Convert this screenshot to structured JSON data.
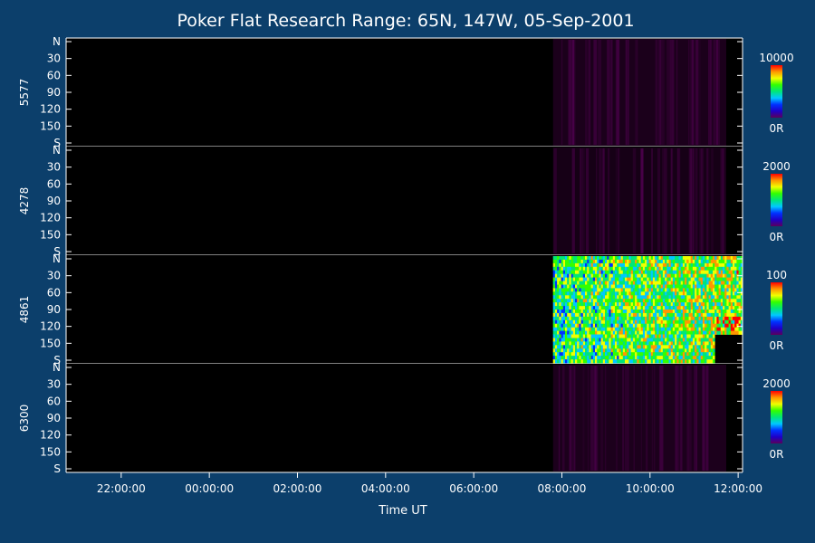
{
  "chart_data": {
    "type": "heatmap",
    "title": "Poker Flat Research Range: 65N, 147W, 05-Sep-2001",
    "xlabel": "Time UT",
    "x_ticks": [
      "22:00:00",
      "00:00:00",
      "02:00:00",
      "04:00:00",
      "06:00:00",
      "08:00:00",
      "10:00:00",
      "12:00:00"
    ],
    "x_tick_hours": [
      22,
      24,
      26,
      28,
      30,
      32,
      34,
      36
    ],
    "x_range_hours": [
      20.75,
      36.1
    ],
    "data_start_hour": 31.8,
    "y_ticks": [
      "N",
      "30",
      "60",
      "90",
      "120",
      "150",
      "S"
    ],
    "y_tick_values": [
      0,
      30,
      60,
      90,
      120,
      150,
      180
    ],
    "y_range": [
      0,
      180
    ],
    "colormap": [
      "#5a005a",
      "#1e00c8",
      "#0032ff",
      "#00c8ff",
      "#00e678",
      "#32ff00",
      "#f0ff00",
      "#ff9600",
      "#ff0000"
    ],
    "panels": [
      {
        "label": "5577",
        "scale_max": "10000",
        "scale_min": "0R",
        "relative_intensity": 0.06
      },
      {
        "label": "4278",
        "scale_max": "2000",
        "scale_min": "0R",
        "relative_intensity": 0.03
      },
      {
        "label": "4861",
        "scale_max": "100",
        "scale_min": "0R",
        "relative_intensity": 0.45
      },
      {
        "label": "6300",
        "scale_max": "2000",
        "scale_min": "0R",
        "relative_intensity": 0.07
      }
    ]
  }
}
